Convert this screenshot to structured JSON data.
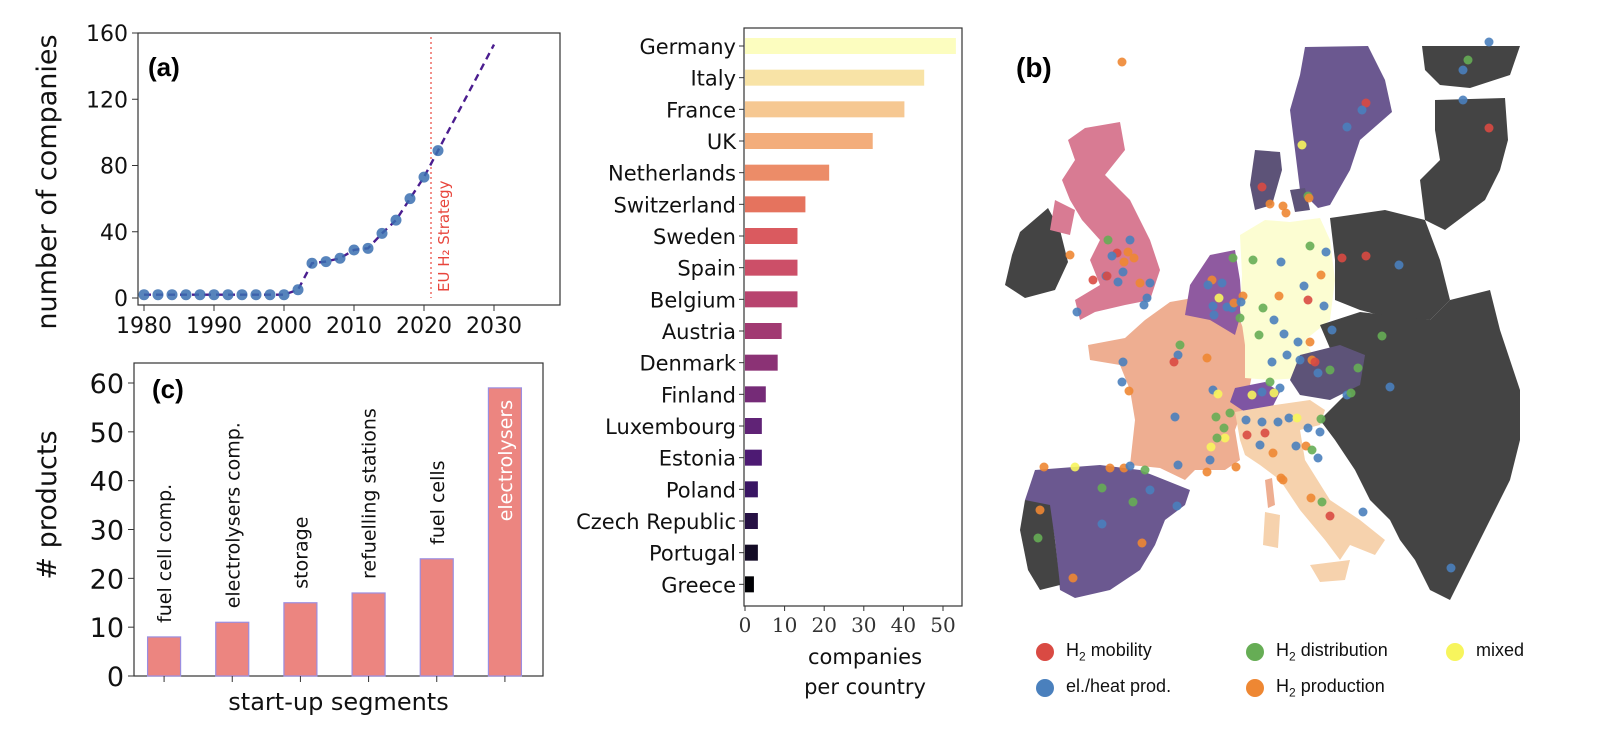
{
  "figure": {
    "panel_a_label": "(a)",
    "panel_b_label": "(b)",
    "panel_c_label": "(c)"
  },
  "chart_data": [
    {
      "id": "a",
      "type": "line",
      "title": "",
      "xlabel": "",
      "ylabel": "number of companies",
      "xlim": [
        1977.5,
        2032
      ],
      "ylim": [
        -5,
        160
      ],
      "xticks": [
        1980,
        1990,
        2000,
        2010,
        2020,
        2030
      ],
      "yticks": [
        0,
        40,
        80,
        120,
        160
      ],
      "series": [
        {
          "name": "observed",
          "style": "scatter",
          "color": "#3a6fb0",
          "x": [
            1980,
            1982,
            1984,
            1986,
            1988,
            1990,
            1992,
            1994,
            1996,
            1998,
            2000,
            2002,
            2004,
            2006,
            2008,
            2010,
            2012,
            2014,
            2016,
            2018,
            2020,
            2022
          ],
          "y": [
            2,
            2,
            2,
            2,
            2,
            2,
            2,
            2,
            2,
            2,
            2,
            5,
            21,
            22,
            24,
            29,
            30,
            39,
            47,
            60,
            73,
            89
          ]
        },
        {
          "name": "trend",
          "style": "dashed",
          "color": "#4b1d8f",
          "x": [
            1980,
            2000,
            2002,
            2004,
            2006,
            2008,
            2010,
            2012,
            2014,
            2016,
            2018,
            2020,
            2022,
            2030
          ],
          "y": [
            2,
            2,
            5,
            21,
            22,
            24,
            29,
            30,
            39,
            47,
            60,
            73,
            89,
            153
          ]
        }
      ],
      "annotations": [
        {
          "type": "vline",
          "x": 2021,
          "color": "#e8453c",
          "style": "dotted",
          "text": "EU H₂ Strategy"
        }
      ],
      "grid": false
    },
    {
      "id": "c",
      "type": "bar",
      "title": "",
      "xlabel": "start-up segments",
      "ylabel": "# products",
      "ylim": [
        0,
        61
      ],
      "yticks": [
        0,
        10,
        20,
        30,
        40,
        50,
        60
      ],
      "categories": [
        "fuel cell comp.",
        "electrolysers comp.",
        "storage",
        "refuelling stations",
        "fuel cells",
        "electrolysers"
      ],
      "values": [
        8,
        11,
        15,
        17,
        24,
        59
      ],
      "bar_color": "#ec8580",
      "edge_color": "#9b8ee0",
      "grid": false
    },
    {
      "id": "countries",
      "type": "bar",
      "orientation": "horizontal",
      "title": "",
      "xlabel": "companies per country",
      "xlabel_lines": [
        "companies",
        "per country"
      ],
      "ylabel": "",
      "xlim": [
        0,
        55
      ],
      "xticks": [
        0,
        10,
        20,
        30,
        40,
        50
      ],
      "categories": [
        "Germany",
        "Italy",
        "France",
        "UK",
        "Netherlands",
        "Switzerland",
        "Sweden",
        "Spain",
        "Belgium",
        "Austria",
        "Denmark",
        "Finland",
        "Luxembourg",
        "Estonia",
        "Poland",
        "Czech Republic",
        "Portugal",
        "Greece"
      ],
      "values": [
        53,
        45,
        40,
        32,
        21,
        15,
        13,
        13,
        13,
        9,
        8,
        5,
        4,
        4,
        3,
        3,
        3,
        2
      ],
      "colors": [
        "#fcfdbf",
        "#f8e3a6",
        "#f6c892",
        "#f3ad7b",
        "#ec8c68",
        "#e5735e",
        "#da5a5f",
        "#cc4f68",
        "#b8446f",
        "#a13a72",
        "#8b3275",
        "#752b77",
        "#602376",
        "#4d1a73",
        "#391563",
        "#261144",
        "#130b25",
        "#000004"
      ],
      "grid": false
    }
  ],
  "map": {
    "legend": [
      {
        "label_pre": "H",
        "label_sub": "2",
        "label_post": " mobility",
        "color": "#d94a43"
      },
      {
        "label_pre": "H",
        "label_sub": "2",
        "label_post": " distribution",
        "color": "#66ad55"
      },
      {
        "label_pre": "",
        "label_sub": "",
        "label_post": "mixed",
        "color": "#f7f55d"
      },
      {
        "label_pre": "",
        "label_sub": "",
        "label_post": "el./heat prod.",
        "color": "#4a80bd"
      },
      {
        "label_pre": "H",
        "label_sub": "2",
        "label_post": " production",
        "color": "#ee8733"
      }
    ],
    "country_colors": {
      "germany": "#fcfdd2",
      "italy": "#f6d2ad",
      "france": "#eeae91",
      "uk": "#d87b93",
      "benelux": "#8f5aa0",
      "sweden": "#6b5890",
      "spain": "#6b5890",
      "denmark": "#5d5378",
      "austria": "#5d5378",
      "switzerland": "#7e55a3",
      "other": "#444444"
    }
  }
}
